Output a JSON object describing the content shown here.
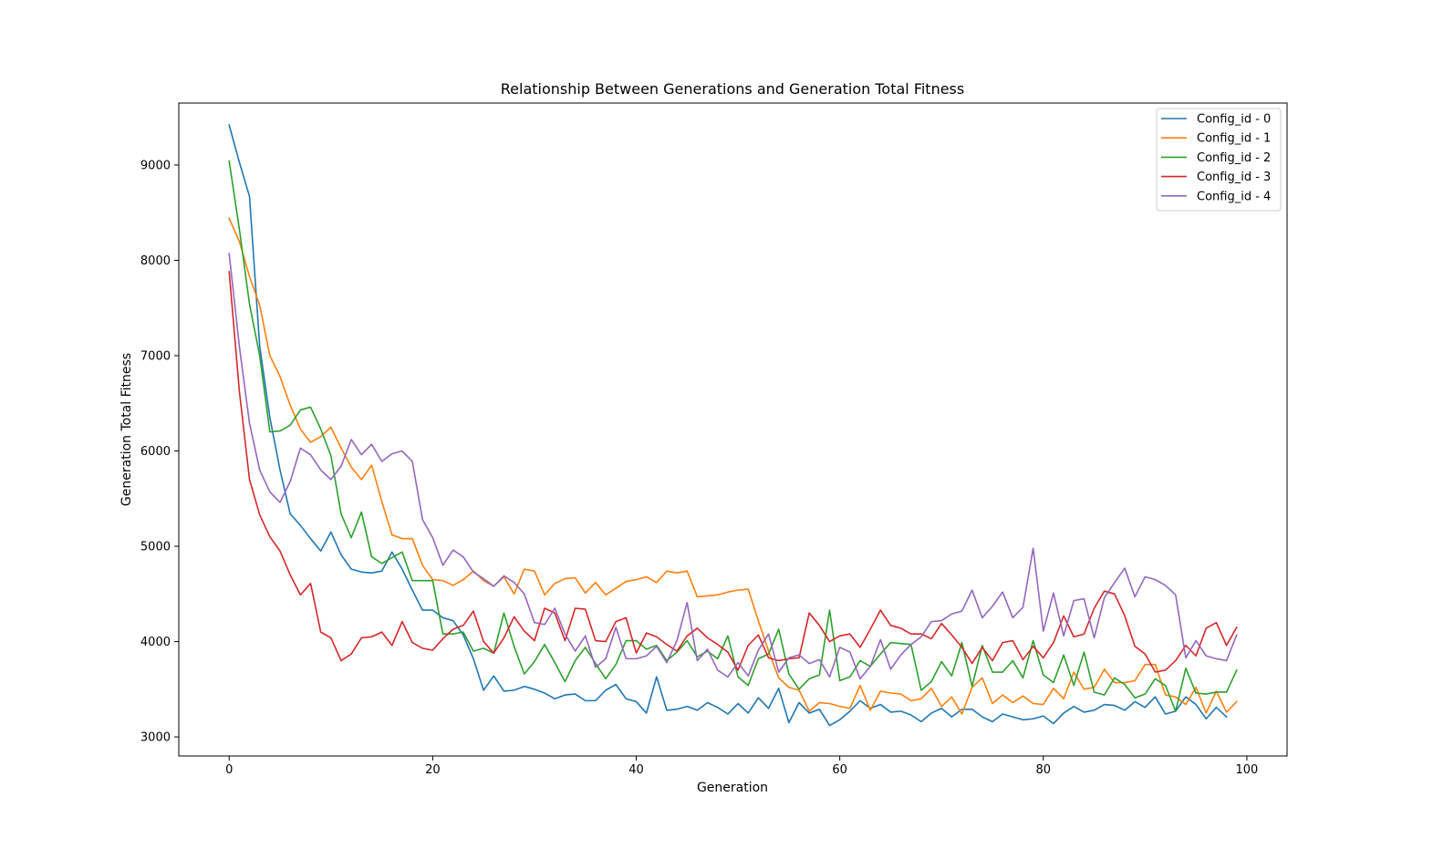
{
  "chart_data": {
    "type": "line",
    "title": "Relationship Between Generations and Generation Total Fitness",
    "xlabel": "Generation",
    "ylabel": "Generation Total Fitness",
    "xlim": [
      -4.95,
      103.95
    ],
    "ylim": [
      2800,
      9650
    ],
    "xticks": [
      0,
      20,
      40,
      60,
      80,
      100
    ],
    "yticks": [
      3000,
      4000,
      5000,
      6000,
      7000,
      8000,
      9000
    ],
    "grid": false,
    "legend_position": "top-right",
    "series": [
      {
        "name": "Config_id - 0",
        "color": "#1f77b4",
        "values": [
          9420,
          9030,
          8670,
          7100,
          6350,
          5800,
          5340,
          5220,
          5080,
          4950,
          5150,
          4910,
          4760,
          4730,
          4720,
          4740,
          4940,
          4760,
          4540,
          4330,
          4330,
          4250,
          4220,
          4070,
          3820,
          3490,
          3640,
          3480,
          3490,
          3530,
          3500,
          3460,
          3400,
          3440,
          3450,
          3380,
          3380,
          3490,
          3550,
          3400,
          3370,
          3250,
          3630,
          3280,
          3290,
          3320,
          3280,
          3360,
          3310,
          3240,
          3350,
          3250,
          3410,
          3300,
          3510,
          3150,
          3360,
          3250,
          3290,
          3120,
          3180,
          3270,
          3380,
          3300,
          3340,
          3260,
          3270,
          3230,
          3160,
          3250,
          3300,
          3210,
          3290,
          3290,
          3210,
          3160,
          3240,
          3210,
          3180,
          3190,
          3220,
          3140,
          3250,
          3320,
          3260,
          3280,
          3340,
          3330,
          3280,
          3370,
          3310,
          3420,
          3240,
          3270,
          3420,
          3340,
          3190,
          3310,
          3210
        ]
      },
      {
        "name": "Config_id - 1",
        "color": "#ff7f0e",
        "values": [
          8440,
          8200,
          7830,
          7530,
          7000,
          6780,
          6480,
          6230,
          6090,
          6150,
          6250,
          6030,
          5830,
          5700,
          5850,
          5470,
          5120,
          5080,
          5080,
          4800,
          4650,
          4640,
          4590,
          4650,
          4740,
          4640,
          4580,
          4680,
          4500,
          4760,
          4740,
          4490,
          4610,
          4660,
          4670,
          4510,
          4620,
          4490,
          4560,
          4630,
          4650,
          4680,
          4620,
          4740,
          4720,
          4740,
          4470,
          4480,
          4490,
          4520,
          4540,
          4550,
          4220,
          3900,
          3620,
          3520,
          3490,
          3270,
          3360,
          3350,
          3320,
          3300,
          3540,
          3280,
          3480,
          3460,
          3450,
          3380,
          3400,
          3510,
          3320,
          3420,
          3240,
          3520,
          3620,
          3350,
          3440,
          3360,
          3430,
          3350,
          3340,
          3510,
          3400,
          3680,
          3500,
          3520,
          3710,
          3570,
          3570,
          3590,
          3760,
          3760,
          3440,
          3420,
          3340,
          3520,
          3250,
          3480,
          3260,
          3370
        ]
      },
      {
        "name": "Config_id - 2",
        "color": "#2ca02c",
        "values": [
          9040,
          8330,
          7540,
          7000,
          6200,
          6210,
          6270,
          6430,
          6460,
          6230,
          5950,
          5340,
          5090,
          5360,
          4890,
          4820,
          4880,
          4940,
          4640,
          4640,
          4640,
          4080,
          4080,
          4100,
          3900,
          3930,
          3880,
          4300,
          3950,
          3660,
          3790,
          3970,
          3780,
          3580,
          3800,
          3940,
          3770,
          3610,
          3760,
          4010,
          4010,
          3920,
          3960,
          3800,
          3890,
          4010,
          3840,
          3900,
          3820,
          4060,
          3630,
          3540,
          3820,
          3870,
          4130,
          3660,
          3500,
          3610,
          3650,
          4330,
          3590,
          3630,
          3800,
          3740,
          3870,
          3990,
          3980,
          3970,
          3490,
          3580,
          3790,
          3640,
          3990,
          3530,
          3960,
          3680,
          3680,
          3800,
          3620,
          4010,
          3650,
          3570,
          3860,
          3540,
          3890,
          3470,
          3440,
          3620,
          3550,
          3410,
          3450,
          3610,
          3540,
          3270,
          3720,
          3460,
          3450,
          3470,
          3470,
          3700
        ]
      },
      {
        "name": "Config_id - 3",
        "color": "#d62728",
        "values": [
          7880,
          6630,
          5700,
          5330,
          5100,
          4950,
          4700,
          4490,
          4610,
          4100,
          4040,
          3800,
          3870,
          4040,
          4050,
          4100,
          3960,
          4210,
          3990,
          3930,
          3910,
          4030,
          4130,
          4170,
          4320,
          4000,
          3880,
          4040,
          4260,
          4110,
          4010,
          4350,
          4300,
          4010,
          4350,
          4340,
          4010,
          4000,
          4210,
          4250,
          3880,
          4090,
          4050,
          3970,
          3900,
          4060,
          4140,
          4040,
          3970,
          3890,
          3700,
          3960,
          4070,
          3830,
          3800,
          3820,
          3830,
          4300,
          4170,
          4000,
          4060,
          4080,
          3940,
          4130,
          4330,
          4170,
          4140,
          4080,
          4080,
          4030,
          4190,
          4070,
          3940,
          3770,
          3940,
          3800,
          3990,
          4010,
          3810,
          3950,
          3830,
          3990,
          4270,
          4050,
          4080,
          4350,
          4530,
          4500,
          4270,
          3950,
          3870,
          3680,
          3700,
          3800,
          3960,
          3850,
          4140,
          4200,
          3960,
          4150
        ]
      },
      {
        "name": "Config_id - 4",
        "color": "#9467bd",
        "values": [
          8070,
          7100,
          6290,
          5800,
          5570,
          5460,
          5680,
          6030,
          5960,
          5800,
          5700,
          5840,
          6120,
          5960,
          6070,
          5890,
          5970,
          6000,
          5890,
          5280,
          5090,
          4800,
          4960,
          4890,
          4730,
          4660,
          4580,
          4690,
          4620,
          4500,
          4200,
          4180,
          4350,
          4080,
          3900,
          4060,
          3730,
          3820,
          4150,
          3820,
          3820,
          3850,
          3950,
          3780,
          4010,
          4410,
          3800,
          3920,
          3700,
          3630,
          3780,
          3640,
          3910,
          4080,
          3680,
          3830,
          3860,
          3770,
          3810,
          3630,
          3940,
          3890,
          3610,
          3740,
          4020,
          3710,
          3860,
          3970,
          4050,
          4210,
          4220,
          4290,
          4320,
          4540,
          4250,
          4370,
          4520,
          4250,
          4360,
          4980,
          4110,
          4510,
          4060,
          4430,
          4450,
          4040,
          4460,
          4620,
          4770,
          4470,
          4680,
          4650,
          4590,
          4490,
          3830,
          4010,
          3850,
          3820,
          3800,
          4070
        ]
      }
    ]
  }
}
